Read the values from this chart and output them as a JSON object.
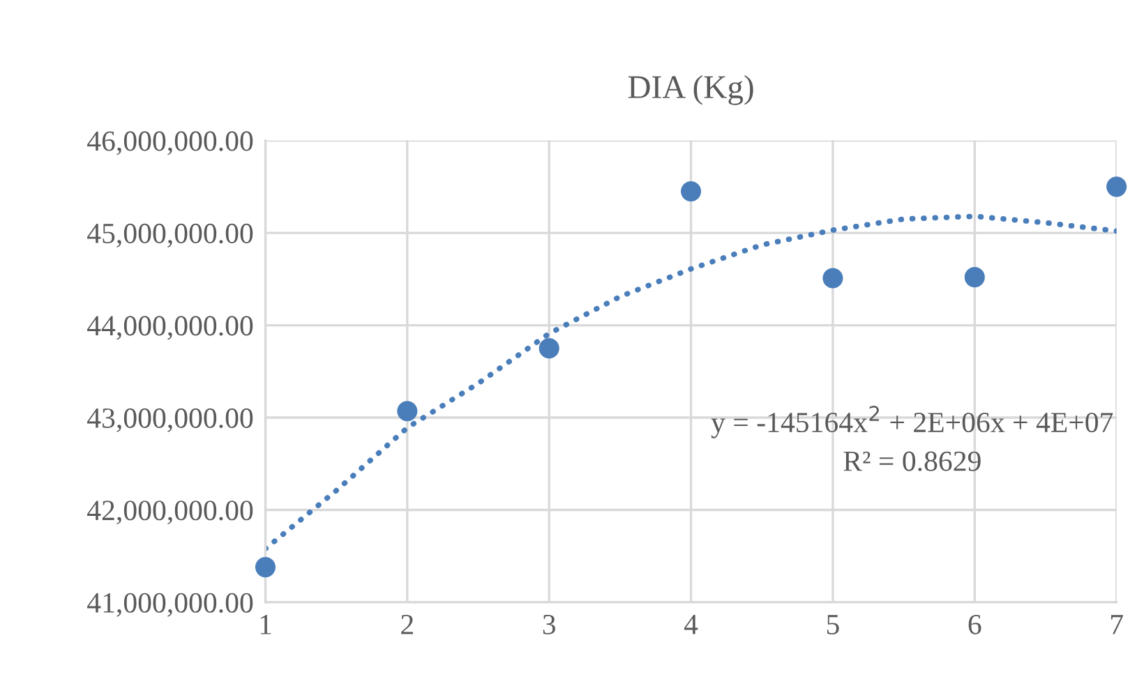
{
  "chart_data": {
    "type": "scatter",
    "title": "DIA (Kg)",
    "x": [
      1,
      2,
      3,
      4,
      5,
      6,
      7
    ],
    "series": [
      {
        "color": "#4a7ebb",
        "marker": "circle",
        "values": [
          41380000,
          43070000,
          43750000,
          45450000,
          44510000,
          44520000,
          45500000
        ]
      },
      {
        "type": "line",
        "color": "#4a7ebb",
        "marker": "none",
        "line_style": "dotted",
        "x": [
          1,
          1.5,
          2,
          2.5,
          3,
          3.5,
          4,
          4.5,
          5,
          5.5,
          6,
          6.5,
          7
        ],
        "values": [
          41580000,
          42210000,
          42890000,
          43370000,
          43910000,
          44310000,
          44610000,
          44870000,
          45030000,
          45150000,
          45180000,
          45110000,
          45020000
        ]
      }
    ],
    "xlim": [
      1,
      7
    ],
    "xticks": [
      1,
      2,
      3,
      4,
      5,
      6,
      7
    ],
    "ylim": [
      41000000,
      46000000
    ],
    "yticks": [
      {
        "value": 41000000,
        "label": "41,000,000.00"
      },
      {
        "value": 42000000,
        "label": "42,000,000.00"
      },
      {
        "value": 43000000,
        "label": "43,000,000.00"
      },
      {
        "value": 44000000,
        "label": "44,000,000.00"
      },
      {
        "value": 45000000,
        "label": "45,000,000.00"
      },
      {
        "value": 46000000,
        "label": "46,000,000.00"
      }
    ],
    "grid": true,
    "legend": false,
    "annotations": [
      "y = -145164x$^{2}$ + 2E+06x + 4E+07",
      "R² = 0.8629"
    ]
  }
}
